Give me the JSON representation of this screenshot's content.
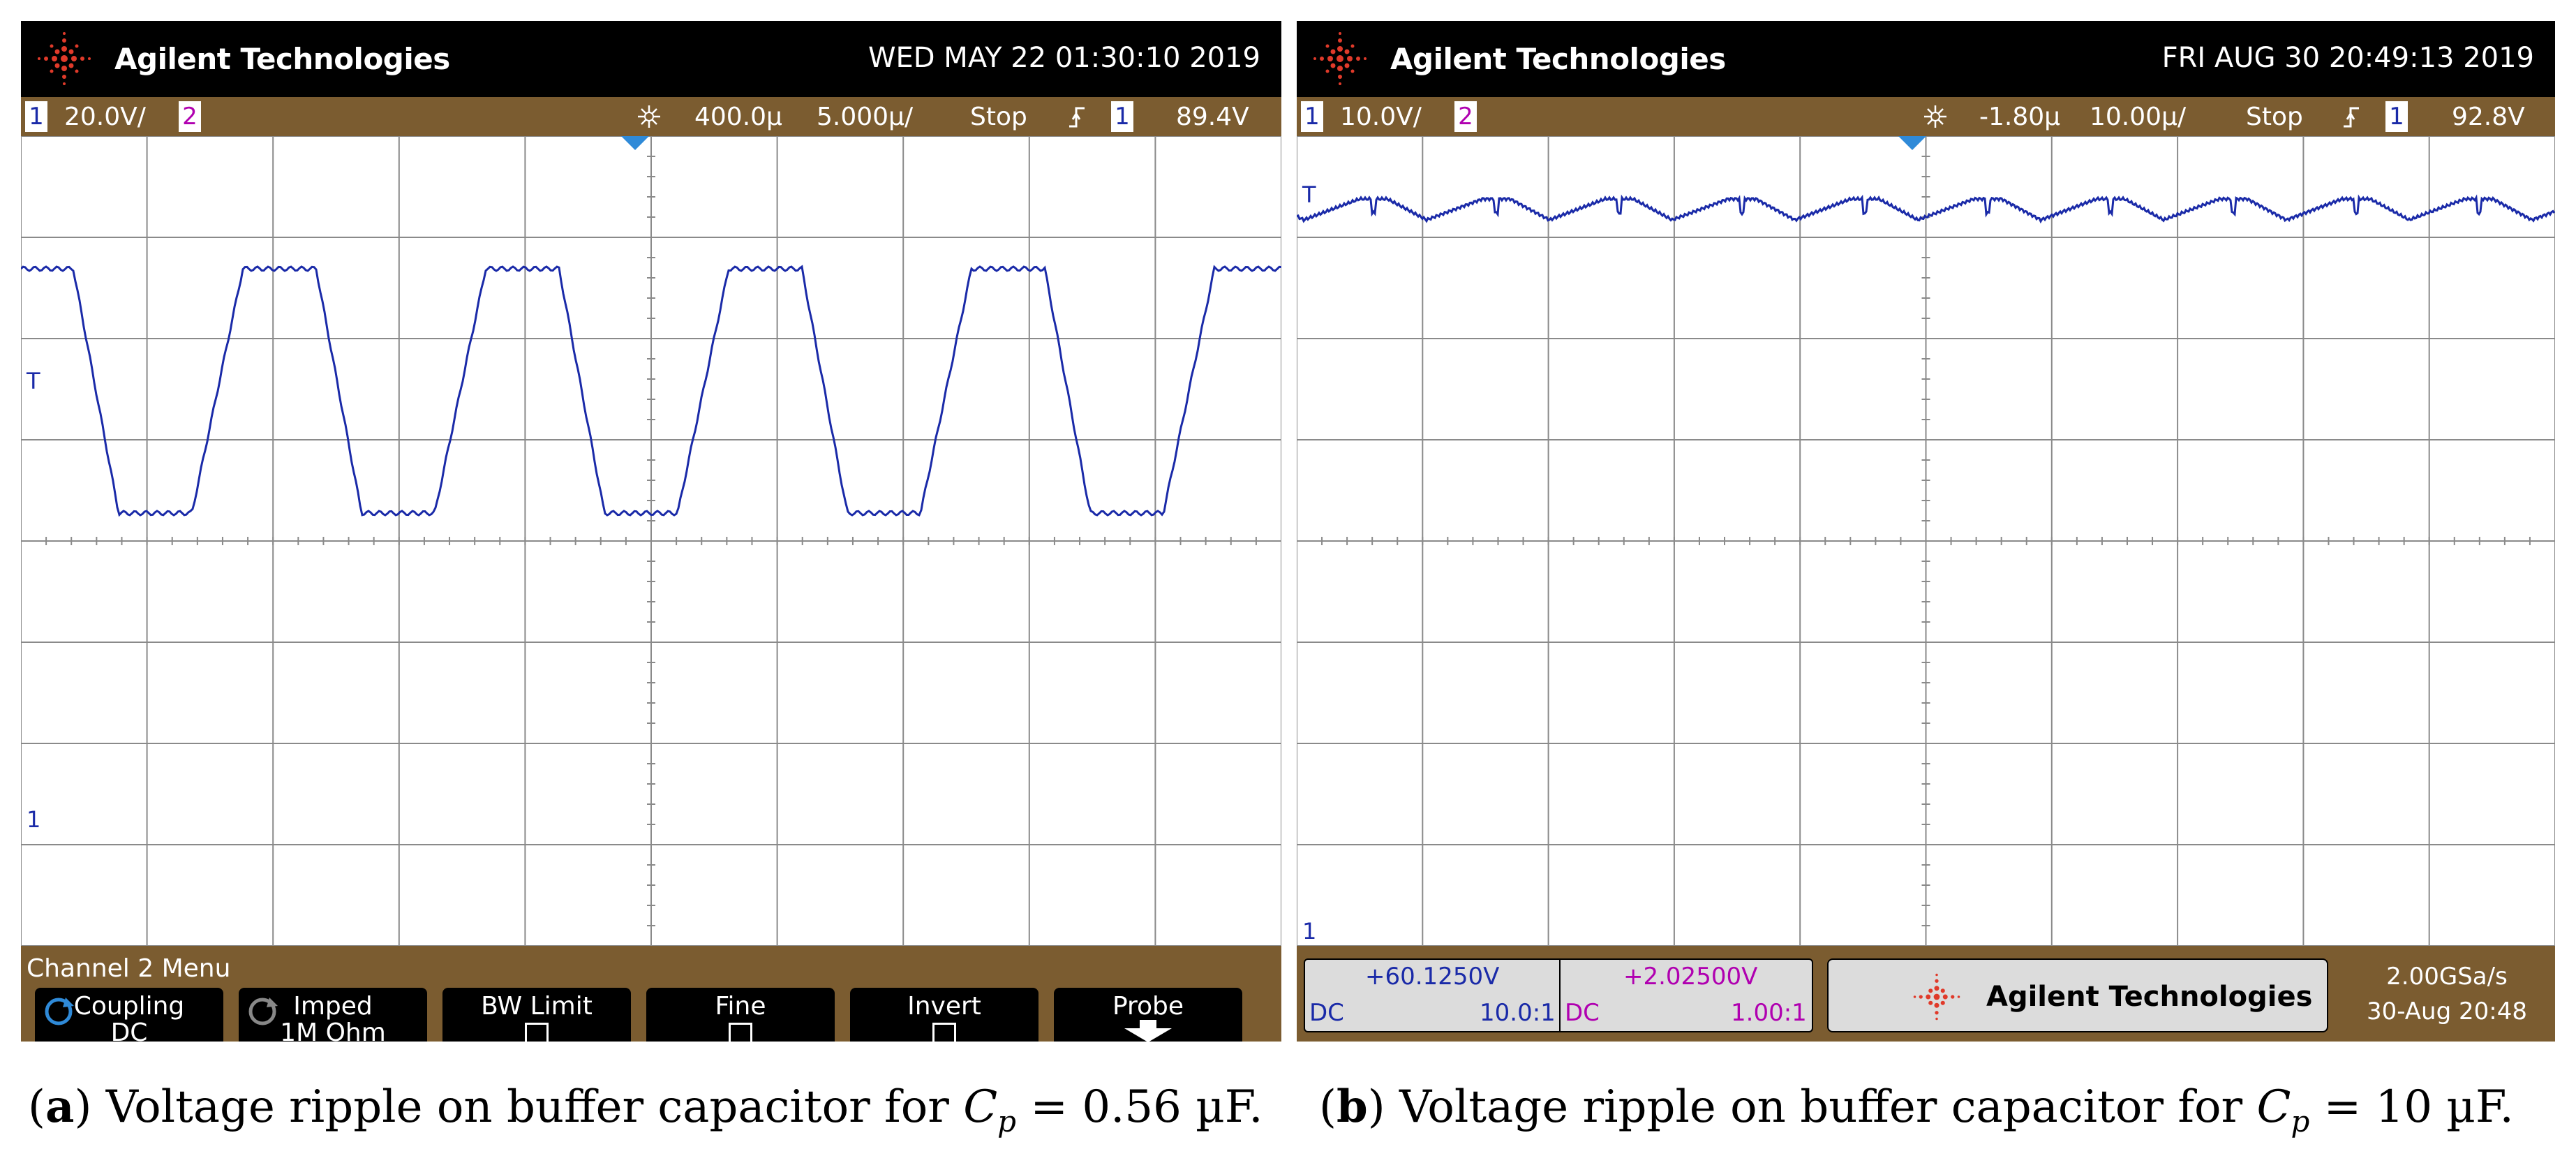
{
  "icons": {
    "logo": "agilent-spark-logo-icon",
    "acquire": "acquisition-sunburst-icon",
    "trigger_edge": "trigger-rising-edge-icon",
    "refresh": "refresh-circle-icon",
    "probe_arrow": "down-arrow-icon"
  },
  "colors": {
    "trace": "#1a2aa8",
    "channel1": "#1a2aa8",
    "channel2": "#b000b0",
    "status_bar": "#7b5c30",
    "grid": "#8a8a8a"
  },
  "panel_a": {
    "brand": "Agilent Technologies",
    "datetime": "WED MAY 22 01:30:10 2019",
    "status": {
      "ch1_num": "1",
      "ch1_scale": "20.0V/",
      "ch2_num": "2",
      "delay": "400.0µ",
      "timebase": "5.000µ/",
      "run_state": "Stop",
      "trig_src": "1",
      "trig_level": "89.4V"
    },
    "trigger_marker": "T",
    "ground_marker": "1",
    "menu_title": "Channel 2  Menu",
    "softkeys": [
      {
        "label": "Coupling",
        "value": "DC"
      },
      {
        "label": "Imped",
        "value": "1M Ohm"
      },
      {
        "label": "BW Limit",
        "value": ""
      },
      {
        "label": "Fine",
        "value": ""
      },
      {
        "label": "Invert",
        "value": ""
      },
      {
        "label": "Probe",
        "value": ""
      }
    ],
    "caption": {
      "tag": "a",
      "text": "Voltage ripple on buffer capacitor for",
      "symbol": "C",
      "subscript": "p",
      "value": "= 0.56 µF."
    }
  },
  "panel_b": {
    "brand": "Agilent Technologies",
    "datetime": "FRI AUG 30 20:49:13 2019",
    "status": {
      "ch1_num": "1",
      "ch1_scale": "10.0V/",
      "ch2_num": "2",
      "delay": "-1.80µ",
      "timebase": "10.00µ/",
      "run_state": "Stop",
      "trig_src": "1",
      "trig_level": "92.8V"
    },
    "trigger_marker": "T",
    "ground_marker": "1",
    "readout_ch1": {
      "value": "+60.1250V",
      "coupling": "DC",
      "probe": "10.0:1"
    },
    "readout_ch2": {
      "value": "+2.02500V",
      "coupling": "DC",
      "probe": "1.00:1"
    },
    "bottom_brand": "Agilent Technologies",
    "sample_rate": "2.00GSa/s",
    "sample_time": "30-Aug 20:48",
    "caption": {
      "tag": "b",
      "text": "Voltage ripple on buffer capacitor for",
      "symbol": "C",
      "subscript": "p",
      "value": "= 10 µF."
    }
  }
}
